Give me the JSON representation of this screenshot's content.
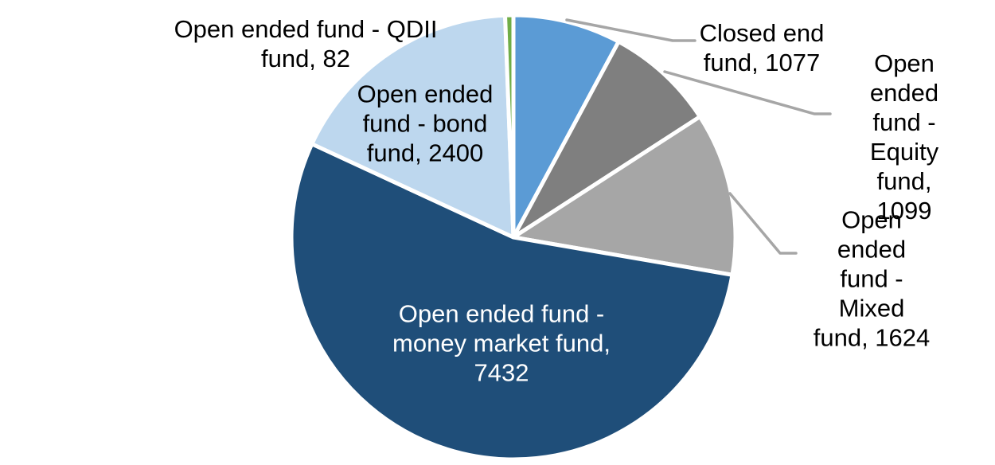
{
  "chart_data": {
    "type": "pie",
    "title": "",
    "total": 13714,
    "start_angle_deg": 0,
    "direction": "clockwise",
    "slice_border_color": "#FFFFFF",
    "leader_line_color": "#A6A6A6",
    "background_color": "#FFFFFF",
    "label_text_color": "#000000",
    "inside_label_text_color": "#FFFFFF",
    "legend_position": "none",
    "slices": [
      {
        "key": "closed-end-fund",
        "category": "Closed end fund",
        "value": 1077,
        "color": "#5B9BD5",
        "data_label": "Closed end\nfund, 1077",
        "label_position": "outside-right",
        "has_leader_line": true
      },
      {
        "key": "open-ended-equity-fund",
        "category": "Open ended fund - Equity fund",
        "value": 1099,
        "color": "#7F7F7F",
        "data_label": "Open ended\nfund - Equity\nfund, 1099",
        "label_position": "outside-right",
        "has_leader_line": true
      },
      {
        "key": "open-ended-mixed-fund",
        "category": "Open ended fund - Mixed fund",
        "value": 1624,
        "color": "#A6A6A6",
        "data_label": "Open ended\nfund - Mixed\nfund, 1624",
        "label_position": "outside-right",
        "has_leader_line": true
      },
      {
        "key": "open-ended-money-market-fund",
        "category": "Open ended fund - money market fund",
        "value": 7432,
        "color": "#1F4E79",
        "data_label": "Open ended fund -\nmoney market fund,\n7432",
        "label_position": "inside",
        "has_leader_line": false
      },
      {
        "key": "open-ended-bond-fund",
        "category": "Open ended fund - bond fund",
        "value": 2400,
        "color": "#BDD7EE",
        "data_label": "Open ended\nfund - bond\nfund, 2400",
        "label_position": "outside-left",
        "has_leader_line": false
      },
      {
        "key": "open-ended-qdii-fund",
        "category": "Open ended fund - QDII fund",
        "value": 82,
        "color": "#70AD47",
        "data_label": "Open ended fund - QDII\nfund, 82",
        "label_position": "outside-left",
        "has_leader_line": false
      }
    ]
  }
}
